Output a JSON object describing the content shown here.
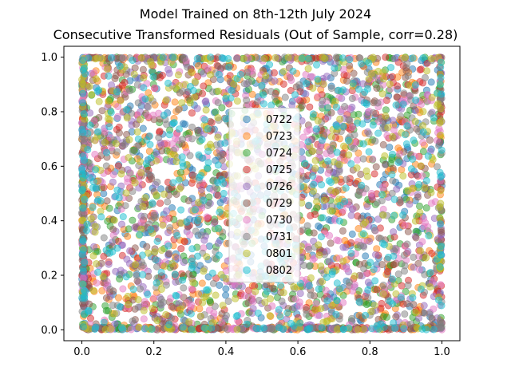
{
  "chart_data": {
    "type": "scatter",
    "title": "Model Trained on 8th-12th July 2024",
    "subtitle": "Consecutive Transformed Residuals (Out of Sample, corr=0.28)",
    "xlabel": "",
    "ylabel": "",
    "xlim": [
      -0.05,
      1.05
    ],
    "ylim": [
      -0.04,
      1.04
    ],
    "xticks": [
      {
        "value": 0.0,
        "label": "0.0"
      },
      {
        "value": 0.2,
        "label": "0.2"
      },
      {
        "value": 0.4,
        "label": "0.4"
      },
      {
        "value": 0.6,
        "label": "0.6"
      },
      {
        "value": 0.8,
        "label": "0.8"
      },
      {
        "value": 1.0,
        "label": "1.0"
      }
    ],
    "yticks": [
      {
        "value": 0.0,
        "label": "0.0"
      },
      {
        "value": 0.2,
        "label": "0.2"
      },
      {
        "value": 0.4,
        "label": "0.4"
      },
      {
        "value": 0.6,
        "label": "0.6"
      },
      {
        "value": 0.8,
        "label": "0.8"
      },
      {
        "value": 1.0,
        "label": "1.0"
      }
    ],
    "grid": false,
    "legend_position": "center",
    "marker_alpha": 0.5,
    "series": [
      {
        "name": "0722",
        "color": "#1f77b4",
        "seed": 11
      },
      {
        "name": "0723",
        "color": "#ff7f0e",
        "seed": 23
      },
      {
        "name": "0724",
        "color": "#2ca02c",
        "seed": 37
      },
      {
        "name": "0725",
        "color": "#d62728",
        "seed": 41
      },
      {
        "name": "0726",
        "color": "#9467bd",
        "seed": 53
      },
      {
        "name": "0729",
        "color": "#8c564b",
        "seed": 67
      },
      {
        "name": "0730",
        "color": "#e377c2",
        "seed": 71
      },
      {
        "name": "0731",
        "color": "#7f7f7f",
        "seed": 83
      },
      {
        "name": "0801",
        "color": "#bcbd22",
        "seed": 97
      },
      {
        "name": "0802",
        "color": "#17becf",
        "seed": 101
      }
    ]
  }
}
